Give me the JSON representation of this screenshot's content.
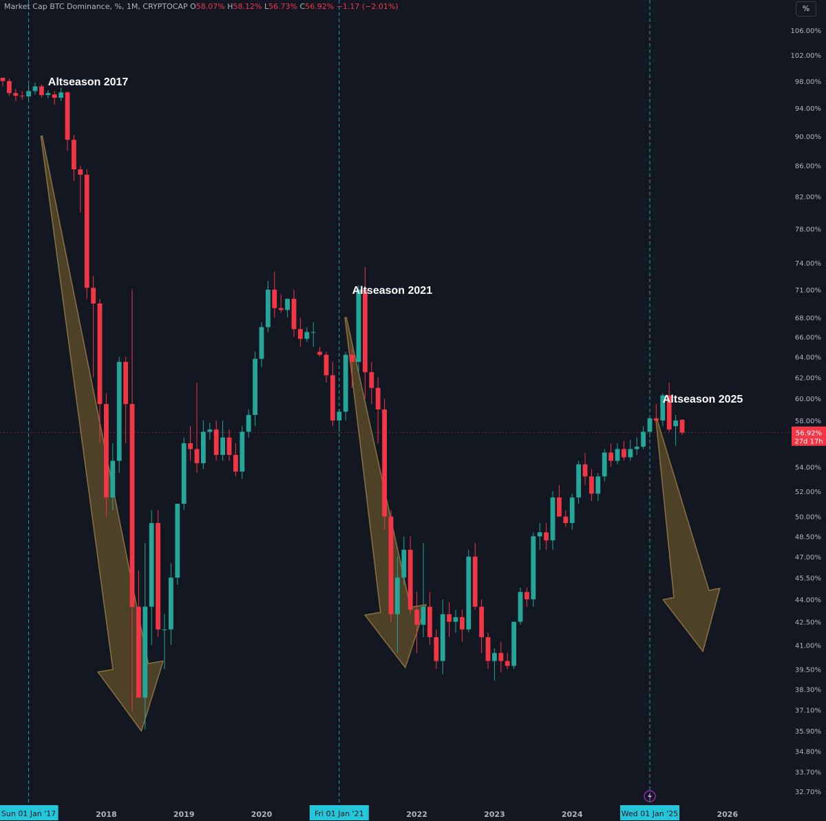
{
  "header": {
    "title": "Market Cap BTC Dominance, %, 1M, CRYPTOCAP",
    "o_label": "O",
    "o_value": "58.07%",
    "h_label": "H",
    "h_value": "58.12%",
    "l_label": "L",
    "l_value": "56.73%",
    "c_label": "C",
    "c_value": "56.92%",
    "change": "−1.17 (−2.01%)"
  },
  "scale_button": "%",
  "price_label": {
    "value": "56.92%",
    "countdown": "27d 17h"
  },
  "colors": {
    "up": "#26a69a",
    "down": "#f23645",
    "background": "#131722",
    "arrow_fill": "#5a4a28",
    "arrow_stroke": "#8a7340",
    "marker": "#26c6da"
  },
  "chart_data": {
    "type": "candlestick",
    "title": "Market Cap BTC Dominance, %, 1M, CRYPTOCAP",
    "y_scale": "log",
    "y_ticks": [
      "106.00%",
      "102.00%",
      "98.00%",
      "94.00%",
      "90.00%",
      "86.00%",
      "82.00%",
      "78.00%",
      "74.00%",
      "71.00%",
      "68.00%",
      "66.00%",
      "64.00%",
      "62.00%",
      "60.00%",
      "58.00%",
      "56.00%",
      "54.00%",
      "52.00%",
      "50.00%",
      "48.50%",
      "47.00%",
      "45.50%",
      "44.00%",
      "42.50%",
      "41.00%",
      "39.50%",
      "38.30%",
      "37.10%",
      "35.90%",
      "34.80%",
      "33.70%",
      "32.70%"
    ],
    "x_ticks": [
      "2018",
      "2019",
      "2020",
      "2021",
      "2022",
      "2023",
      "2024",
      "2025",
      "2026"
    ],
    "x_markers": [
      "Sun 01 Jan '17",
      "Fri 01 Jan '21",
      "Wed 01 Jan '25"
    ],
    "annotations": [
      "Altseason 2017",
      "Altseason 2021",
      "Altseason 2025"
    ],
    "start_month": "2016-09",
    "candles": [
      [
        98.5,
        98.5,
        97.2,
        98.0
      ],
      [
        98.0,
        98.4,
        95.8,
        96.2
      ],
      [
        96.2,
        96.8,
        95.0,
        95.8
      ],
      [
        95.8,
        96.5,
        95.2,
        95.7
      ],
      [
        95.7,
        97.5,
        95.3,
        96.5
      ],
      [
        96.5,
        97.8,
        96.0,
        97.2
      ],
      [
        97.2,
        97.5,
        95.5,
        95.9
      ],
      [
        95.9,
        96.6,
        95.4,
        96.2
      ],
      [
        96.0,
        96.5,
        94.5,
        95.5
      ],
      [
        95.5,
        97.0,
        95.0,
        96.3
      ],
      [
        96.3,
        96.5,
        88.0,
        89.5
      ],
      [
        89.5,
        90.2,
        84.0,
        85.5
      ],
      [
        85.5,
        86.0,
        80.0,
        84.8
      ],
      [
        84.8,
        85.5,
        70.0,
        71.2
      ],
      [
        71.2,
        72.5,
        62.0,
        69.5
      ],
      [
        69.5,
        70.0,
        56.0,
        59.5
      ],
      [
        59.5,
        60.5,
        50.0,
        51.5
      ],
      [
        51.5,
        56.0,
        50.5,
        54.5
      ],
      [
        54.5,
        64.0,
        53.5,
        63.5
      ],
      [
        63.5,
        64.0,
        56.0,
        59.5
      ],
      [
        59.5,
        71.0,
        37.0,
        43.5
      ],
      [
        43.5,
        46.0,
        38.0,
        37.8
      ],
      [
        37.8,
        48.0,
        36.0,
        43.5
      ],
      [
        43.5,
        50.5,
        41.0,
        49.5
      ],
      [
        49.5,
        50.5,
        41.5,
        42.0
      ],
      [
        42.0,
        43.0,
        39.5,
        42.0
      ],
      [
        42.0,
        46.5,
        41.0,
        45.5
      ],
      [
        45.5,
        51.0,
        45.0,
        51.0
      ],
      [
        51.0,
        56.5,
        50.5,
        56.0
      ],
      [
        56.0,
        57.5,
        54.5,
        55.5
      ],
      [
        55.5,
        61.5,
        53.5,
        54.3
      ],
      [
        54.3,
        58.0,
        53.8,
        57.0
      ],
      [
        57.0,
        57.8,
        56.3,
        57.2
      ],
      [
        57.2,
        58.0,
        54.5,
        55.0
      ],
      [
        55.0,
        58.0,
        54.5,
        56.5
      ],
      [
        56.5,
        57.2,
        54.5,
        55.0
      ],
      [
        55.0,
        56.0,
        53.2,
        53.6
      ],
      [
        53.6,
        57.5,
        53.0,
        57.0
      ],
      [
        57.0,
        59.0,
        56.5,
        58.5
      ],
      [
        58.5,
        64.5,
        57.5,
        63.8
      ],
      [
        63.8,
        67.5,
        63.0,
        67.0
      ],
      [
        67.0,
        72.0,
        66.5,
        71.0
      ],
      [
        71.0,
        73.0,
        68.0,
        69.0
      ],
      [
        69.0,
        70.5,
        68.5,
        68.8
      ],
      [
        68.8,
        70.0,
        68.0,
        70.0
      ],
      [
        70.0,
        71.0,
        66.0,
        66.8
      ],
      [
        66.8,
        68.0,
        65.0,
        65.8
      ],
      [
        65.8,
        67.0,
        65.5,
        66.5
      ],
      [
        66.5,
        67.5,
        65.0,
        66.5
      ],
      [
        64.5,
        65.0,
        64.0,
        64.2
      ],
      [
        64.2,
        64.5,
        61.5,
        62.2
      ],
      [
        62.2,
        63.5,
        57.5,
        58.0
      ],
      [
        58.0,
        59.0,
        57.0,
        58.8
      ],
      [
        58.8,
        64.5,
        58.0,
        64.2
      ],
      [
        64.2,
        64.8,
        61.0,
        63.5
      ],
      [
        63.5,
        71.5,
        62.5,
        71.0
      ],
      [
        71.0,
        73.5,
        60.0,
        62.5
      ],
      [
        62.5,
        63.5,
        59.5,
        61.0
      ],
      [
        61.0,
        62.0,
        56.0,
        59.0
      ],
      [
        59.0,
        60.0,
        49.0,
        50.0
      ],
      [
        50.0,
        50.5,
        42.5,
        43.0
      ],
      [
        43.0,
        47.0,
        40.5,
        45.5
      ],
      [
        45.5,
        48.5,
        45.0,
        47.5
      ],
      [
        47.5,
        48.5,
        43.0,
        43.3
      ],
      [
        43.3,
        44.5,
        40.5,
        42.3
      ],
      [
        42.3,
        48.0,
        41.5,
        43.5
      ],
      [
        43.5,
        44.5,
        41.0,
        41.5
      ],
      [
        41.5,
        42.0,
        39.5,
        40.0
      ],
      [
        40.0,
        44.0,
        39.2,
        43.0
      ],
      [
        43.0,
        43.8,
        41.5,
        42.5
      ],
      [
        42.5,
        43.3,
        41.8,
        42.8
      ],
      [
        42.8,
        43.3,
        41.2,
        42.0
      ],
      [
        42.0,
        47.5,
        41.8,
        47.0
      ],
      [
        47.0,
        48.0,
        43.3,
        43.5
      ],
      [
        43.5,
        44.0,
        40.5,
        41.5
      ],
      [
        41.5,
        41.8,
        39.5,
        40.0
      ],
      [
        40.0,
        40.8,
        38.8,
        40.5
      ],
      [
        40.5,
        41.2,
        39.3,
        40.0
      ],
      [
        40.0,
        40.5,
        39.5,
        39.7
      ],
      [
        39.7,
        42.5,
        39.5,
        42.5
      ],
      [
        42.5,
        44.8,
        42.3,
        44.5
      ],
      [
        44.5,
        44.8,
        43.5,
        44.0
      ],
      [
        44.0,
        48.8,
        43.5,
        48.5
      ],
      [
        48.5,
        49.5,
        47.5,
        48.8
      ],
      [
        48.8,
        49.5,
        47.5,
        48.2
      ],
      [
        48.2,
        52.0,
        47.5,
        51.5
      ],
      [
        51.5,
        52.5,
        50.0,
        50.0
      ],
      [
        50.0,
        50.5,
        49.2,
        49.5
      ],
      [
        49.5,
        51.8,
        49.0,
        51.5
      ],
      [
        51.5,
        54.5,
        51.0,
        54.2
      ],
      [
        54.2,
        55.2,
        52.5,
        53.2
      ],
      [
        53.2,
        53.8,
        51.2,
        51.8
      ],
      [
        51.8,
        53.5,
        51.2,
        53.2
      ],
      [
        53.2,
        55.5,
        52.8,
        55.2
      ],
      [
        55.2,
        56.0,
        54.0,
        54.5
      ],
      [
        54.5,
        56.0,
        54.2,
        55.5
      ],
      [
        55.5,
        56.2,
        54.5,
        54.8
      ],
      [
        54.8,
        56.3,
        54.5,
        55.5
      ],
      [
        55.5,
        56.5,
        55.0,
        55.7
      ],
      [
        55.7,
        57.5,
        55.5,
        57.0
      ],
      [
        57.0,
        58.5,
        56.5,
        58.2
      ],
      [
        58.2,
        59.5,
        57.5,
        58.0
      ],
      [
        58.0,
        60.5,
        57.5,
        60.3
      ],
      [
        60.3,
        61.5,
        57.0,
        57.2
      ],
      [
        57.5,
        58.5,
        55.8,
        58.0
      ],
      [
        58.07,
        58.12,
        56.73,
        56.92
      ]
    ]
  }
}
